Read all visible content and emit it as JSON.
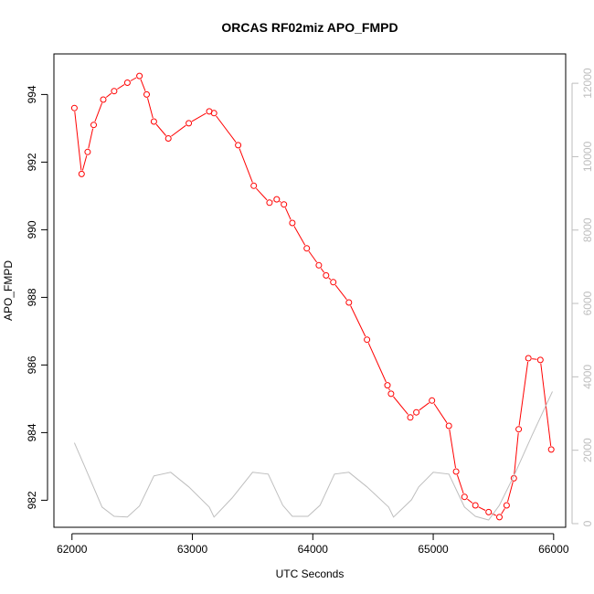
{
  "chart_data": {
    "type": "line",
    "title": "ORCAS RF02miz APO_FMPD",
    "xlabel": "UTC Seconds",
    "ylabel": "APO_FMPD",
    "xlim": [
      61850,
      66100
    ],
    "ylim": [
      981.2,
      995.2
    ],
    "y2lim": [
      -100,
      12800
    ],
    "x_ticks": [
      62000,
      63000,
      64000,
      65000,
      66000
    ],
    "y_ticks": [
      982,
      984,
      986,
      988,
      990,
      992,
      994
    ],
    "y2_ticks": [
      0,
      2000,
      4000,
      6000,
      8000,
      10000,
      12000
    ],
    "grid": false,
    "series": [
      {
        "axis": "left",
        "color": "#ff0000",
        "marker": "open-circle",
        "x": [
          62020,
          62080,
          62130,
          62180,
          62260,
          62350,
          62460,
          62560,
          62620,
          62680,
          62800,
          62970,
          63140,
          63180,
          63380,
          63510,
          63640,
          63700,
          63760,
          63830,
          63950,
          64050,
          64110,
          64170,
          64300,
          64450,
          64620,
          64650,
          64810,
          64860,
          64990,
          65130,
          65190,
          65260,
          65350,
          65460,
          65550,
          65610,
          65670,
          65710,
          65790,
          65890,
          65980
        ],
        "y": [
          993.6,
          991.65,
          992.3,
          993.1,
          993.85,
          994.1,
          994.35,
          994.55,
          994.0,
          993.2,
          992.7,
          993.15,
          993.5,
          993.45,
          992.5,
          991.3,
          990.8,
          990.9,
          990.75,
          990.2,
          989.45,
          988.95,
          988.65,
          988.45,
          987.85,
          986.75,
          985.4,
          985.15,
          984.45,
          984.6,
          984.95,
          984.2,
          982.85,
          982.1,
          981.85,
          981.65,
          981.5,
          981.85,
          982.65,
          984.1,
          986.2,
          986.15,
          983.5
        ]
      },
      {
        "axis": "right",
        "color": "#bebebe",
        "marker": "none",
        "x": [
          62020,
          62100,
          62250,
          62350,
          62460,
          62560,
          62680,
          62820,
          62970,
          63140,
          63180,
          63330,
          63500,
          63630,
          63750,
          63830,
          63960,
          64060,
          64180,
          64300,
          64450,
          64630,
          64670,
          64820,
          64880,
          65000,
          65130,
          65260,
          65350,
          65460,
          65550,
          65670,
          65820,
          65990
        ],
        "y": [
          2200,
          1600,
          450,
          200,
          180,
          480,
          1300,
          1400,
          1000,
          450,
          180,
          700,
          1400,
          1350,
          500,
          200,
          200,
          500,
          1350,
          1400,
          1000,
          450,
          180,
          650,
          1000,
          1400,
          1350,
          450,
          200,
          100,
          500,
          1300,
          2400,
          3600
        ]
      }
    ]
  }
}
